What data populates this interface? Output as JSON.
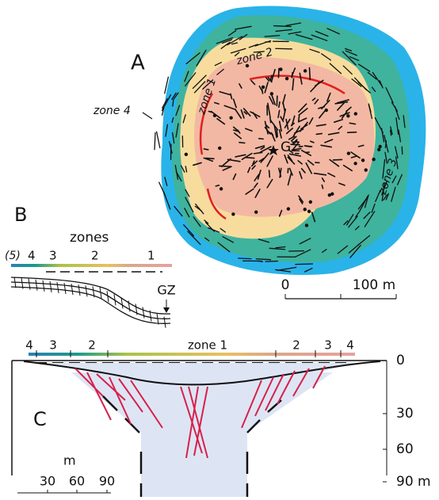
{
  "panel_a": {
    "label": "A",
    "zone_labels": [
      "zone 2",
      "zone 1",
      "zone 4",
      "zone 3"
    ],
    "ground_zero": "GZ",
    "scale": [
      "0",
      "100 m"
    ]
  },
  "panel_b": {
    "label": "B",
    "title": "zones",
    "zones": [
      "(5)",
      "4",
      "3",
      "2",
      "1"
    ],
    "ground_zero": "GZ"
  },
  "panel_c": {
    "label": "C",
    "zones": [
      "4",
      "3",
      "2",
      "zone 1",
      "2",
      "3",
      "4"
    ],
    "depth_ticks": [
      "0",
      "30",
      "60",
      "90 m"
    ],
    "width_unit": "m",
    "width_ticks": [
      "30",
      "60",
      "90"
    ]
  }
}
